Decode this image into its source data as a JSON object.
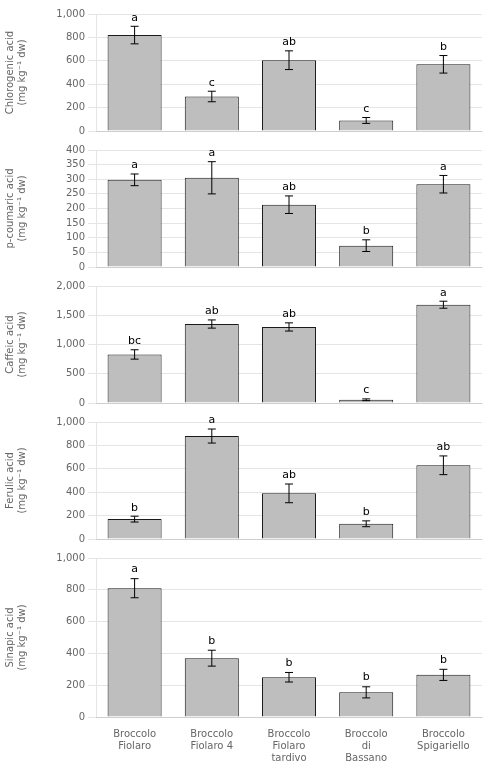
{
  "chart_data": [
    {
      "type": "bar",
      "categories": [
        "Broccolo\nFiolaro",
        "Broccolo\nFiolaro 4",
        "Broccolo\nFiolaro\ntardivo",
        "Broccolo\ndi\nBassano",
        "Broccolo\nSpigariello"
      ],
      "y_label": "Chlorogenic acid\n(mg kg⁻¹ dw)",
      "values": [
        820,
        295,
        605,
        90,
        570
      ],
      "errors": [
        75,
        45,
        80,
        25,
        75
      ],
      "letters": [
        "a",
        "c",
        "ab",
        "c",
        "b"
      ],
      "color": "#BEBEBE",
      "ylim": [
        0,
        1000
      ],
      "yticks": [
        0,
        200,
        400,
        600,
        800,
        1000
      ],
      "grid": true,
      "tick_labels": "y"
    },
    {
      "type": "bar",
      "categories": [
        "Broccolo\nFiolaro",
        "Broccolo\nFiolaro 4",
        "Broccolo\nFiolaro\ntardivo",
        "Broccolo\ndi\nBassano",
        "Broccolo\nSpigariello"
      ],
      "y_label": "p-coumaric acid\n(mg kg⁻¹ dw)",
      "values": [
        298,
        305,
        213,
        73,
        283
      ],
      "errors": [
        20,
        55,
        30,
        20,
        30
      ],
      "letters": [
        "a",
        "a",
        "ab",
        "b",
        "a"
      ],
      "color": "#BEBEBE",
      "ylim": [
        0,
        400
      ],
      "yticks": [
        0,
        50,
        100,
        150,
        200,
        250,
        300,
        350,
        400
      ],
      "grid": true,
      "tick_labels": "y"
    },
    {
      "type": "bar",
      "categories": [
        "Broccolo\nFiolaro",
        "Broccolo\nFiolaro 4",
        "Broccolo\nFiolaro\ntardivo",
        "Broccolo\ndi\nBassano",
        "Broccolo\nSpigariello"
      ],
      "y_label": "Caffeic acid\n(mg kg⁻¹ dw)",
      "values": [
        830,
        1350,
        1300,
        55,
        1680
      ],
      "errors": [
        80,
        70,
        70,
        15,
        60
      ],
      "letters": [
        "bc",
        "ab",
        "ab",
        "c",
        "a"
      ],
      "color": "#BEBEBE",
      "ylim": [
        0,
        2000
      ],
      "yticks": [
        0,
        500,
        1000,
        1500,
        2000
      ],
      "grid": true,
      "tick_labels": "y"
    },
    {
      "type": "bar",
      "categories": [
        "Broccolo\nFiolaro",
        "Broccolo\nFiolaro 4",
        "Broccolo\nFiolaro\ntardivo",
        "Broccolo\ndi\nBassano",
        "Broccolo\nSpigariello"
      ],
      "y_label": "Ferulic acid\n(mg kg⁻¹ dw)",
      "values": [
        170,
        880,
        390,
        130,
        630
      ],
      "errors": [
        25,
        60,
        80,
        25,
        80
      ],
      "letters": [
        "b",
        "a",
        "ab",
        "b",
        "ab"
      ],
      "color": "#BEBEBE",
      "ylim": [
        0,
        1000
      ],
      "yticks": [
        0,
        200,
        400,
        600,
        800,
        1000
      ],
      "grid": true,
      "tick_labels": "y"
    },
    {
      "type": "bar",
      "categories": [
        "Broccolo\nFiolaro",
        "Broccolo\nFiolaro 4",
        "Broccolo\nFiolaro\ntardivo",
        "Broccolo\ndi\nBassano",
        "Broccolo\nSpigariello"
      ],
      "y_label": "Sinapic acid\n(mg kg⁻¹ dw)",
      "values": [
        810,
        370,
        250,
        155,
        265
      ],
      "errors": [
        60,
        50,
        30,
        35,
        35
      ],
      "letters": [
        "a",
        "b",
        "b",
        "b",
        "b"
      ],
      "color": "#BEBEBE",
      "ylim": [
        0,
        1000
      ],
      "yticks": [
        0,
        200,
        400,
        600,
        800,
        1000
      ],
      "grid": true
    }
  ]
}
